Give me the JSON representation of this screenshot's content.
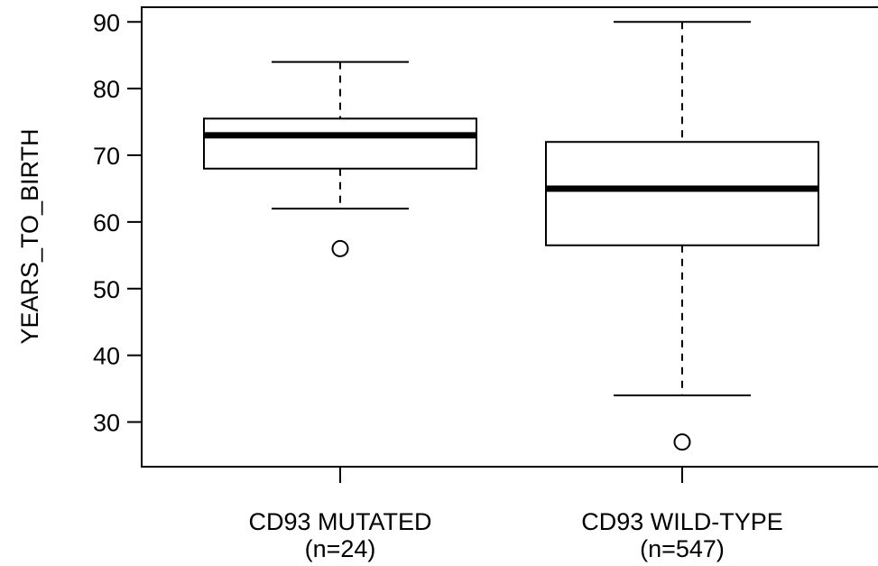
{
  "chart_data": {
    "type": "box",
    "ylabel": "YEARS_TO_BIRTH",
    "yticks": [
      30,
      40,
      50,
      60,
      70,
      80,
      90
    ],
    "ylim": [
      23.3,
      92.2
    ],
    "groups": [
      {
        "label_line1": "CD93 MUTATED",
        "label_line2": "(n=24)",
        "whisker_low": 62,
        "q1": 68,
        "median": 73,
        "q3": 75.5,
        "whisker_high": 84,
        "outliers": [
          56
        ]
      },
      {
        "label_line1": "CD93 WILD-TYPE",
        "label_line2": "(n=547)",
        "whisker_low": 34,
        "q1": 56.5,
        "median": 65,
        "q3": 72,
        "whisker_high": 90,
        "outliers": [
          27
        ]
      }
    ]
  }
}
